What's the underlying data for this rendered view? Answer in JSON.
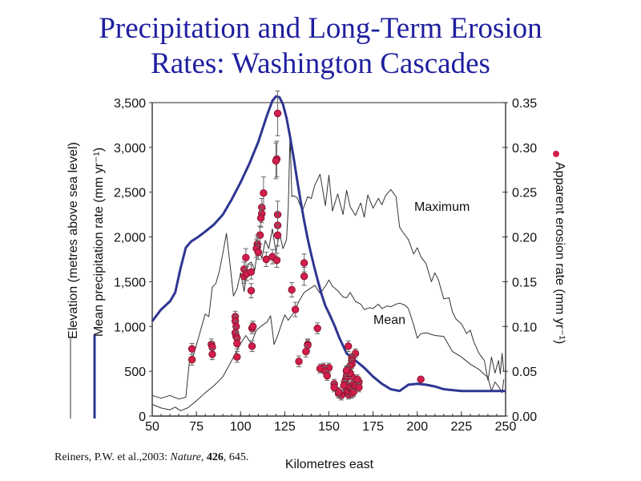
{
  "title_lines": [
    "Precipitation and Long-Term Erosion",
    "Rates: Washington Cascades"
  ],
  "citation": {
    "prefix": "Reiners, P.W. et al.,2003: ",
    "journal": "Nature",
    "sep1": ", ",
    "volume": "426",
    "sep2": ", 645."
  },
  "colors": {
    "title": "#1f1fa0",
    "precipitation": "#2e3592",
    "elevation": "#333333",
    "erosion_fill": "#d21e4b",
    "erosion_stroke": "#7a0f28",
    "error_bar": "#666666"
  },
  "chart_data": {
    "type": "line",
    "title": "Precipitation and Long-Term Erosion Rates: Washington Cascades",
    "xlabel": "Kilometres east",
    "ylabel_left_lines": [
      "Elevation (metres above sea level)",
      "Mean precipitation rate (mm yr⁻¹)"
    ],
    "ylabel_right": "Apparent erosion rate (mm yr⁻¹)",
    "xlim": [
      50,
      250
    ],
    "ylim_left": [
      0,
      3500
    ],
    "ylim_right": [
      0,
      0.35
    ],
    "x_ticks": [
      "50",
      "75",
      "100",
      "125",
      "150",
      "175",
      "200",
      "225",
      "250"
    ],
    "x_tick_values": [
      50,
      75,
      100,
      125,
      150,
      175,
      200,
      225,
      250
    ],
    "y_left_ticks": [
      "0",
      "500",
      "1,000",
      "1,500",
      "2,000",
      "2,500",
      "3,000",
      "3,500"
    ],
    "y_left_tick_values": [
      0,
      500,
      1000,
      1500,
      2000,
      2500,
      3000,
      3500
    ],
    "y_right_ticks": [
      "0.00",
      "0.05",
      "0.10",
      "0.15",
      "0.20",
      "0.25",
      "0.30",
      "0.35"
    ],
    "y_right_tick_values": [
      0,
      0.05,
      0.1,
      0.15,
      0.2,
      0.25,
      0.3,
      0.35
    ],
    "legend": [
      {
        "label": "Elevation (metres above sea level)",
        "style": "thin grey line"
      },
      {
        "label": "Mean precipitation rate (mm yr⁻¹)",
        "style": "thick blue line"
      },
      {
        "label": "Apparent erosion rate (mm yr⁻¹)",
        "style": "red dot"
      }
    ],
    "annotations": [
      "Maximum",
      "Mean"
    ],
    "series": [
      {
        "name": "Mean precipitation rate",
        "axis": "left",
        "x": [
          50,
          55,
          60,
          63,
          66,
          69,
          72,
          76,
          80,
          85,
          90,
          95,
          100,
          105,
          110,
          115,
          118,
          120,
          122,
          124,
          126,
          128,
          130,
          132,
          134,
          136,
          138,
          140,
          142,
          144,
          146,
          148,
          150,
          153,
          156,
          160,
          165,
          170,
          175,
          180,
          185,
          190,
          195,
          200,
          205,
          210,
          215,
          220,
          225,
          230,
          235,
          240,
          245,
          250
        ],
        "values": [
          1060,
          1190,
          1280,
          1380,
          1650,
          1880,
          1950,
          2000,
          2060,
          2140,
          2250,
          2420,
          2610,
          2820,
          3060,
          3360,
          3520,
          3570,
          3560,
          3480,
          3330,
          3120,
          2890,
          2640,
          2400,
          2180,
          1980,
          1800,
          1640,
          1490,
          1350,
          1230,
          1150,
          1020,
          870,
          700,
          620,
          540,
          440,
          360,
          300,
          280,
          350,
          360,
          350,
          330,
          300,
          290,
          280,
          280,
          280,
          280,
          280,
          280
        ]
      },
      {
        "name": "Maximum elevation",
        "axis": "left",
        "x": [
          50,
          55,
          60,
          65,
          69,
          71,
          73,
          76,
          78,
          80,
          82,
          84,
          86,
          88,
          90,
          92,
          94,
          96,
          98,
          100,
          102,
          104,
          106,
          108,
          110,
          112,
          114,
          116,
          118,
          120,
          122,
          124,
          126,
          127,
          128,
          129,
          130,
          132,
          135,
          138,
          140,
          142,
          145,
          148,
          150,
          152,
          155,
          158,
          160,
          162,
          165,
          168,
          170,
          172,
          175,
          178,
          180,
          182,
          185,
          188,
          190,
          192,
          195,
          198,
          200,
          202,
          205,
          208,
          210,
          212,
          215,
          218,
          220,
          222,
          225,
          228,
          230,
          232,
          235,
          238,
          240,
          241,
          242,
          244,
          246,
          247,
          248,
          249
        ],
        "values": [
          230,
          200,
          230,
          190,
          210,
          600,
          660,
          860,
          1000,
          1140,
          1110,
          1440,
          1480,
          1620,
          1820,
          2040,
          1700,
          1340,
          1420,
          1600,
          1390,
          1690,
          1720,
          1630,
          1900,
          1760,
          1960,
          1870,
          2090,
          1830,
          2050,
          1870,
          1970,
          2330,
          3160,
          2450,
          2460,
          2440,
          2290,
          2450,
          2430,
          2580,
          2700,
          2350,
          2690,
          2290,
          2480,
          2250,
          2520,
          2340,
          2240,
          2380,
          2220,
          2470,
          2320,
          2430,
          2360,
          2460,
          2530,
          2450,
          2110,
          2050,
          1970,
          1810,
          1880,
          1780,
          1700,
          1500,
          1600,
          1520,
          1310,
          1320,
          1160,
          1080,
          1030,
          920,
          960,
          830,
          700,
          620,
          400,
          520,
          660,
          480,
          620,
          470,
          700,
          500
        ]
      },
      {
        "name": "Mean elevation",
        "axis": "left",
        "x": [
          50,
          55,
          60,
          63,
          66,
          70,
          75,
          80,
          85,
          90,
          95,
          100,
          103,
          106,
          109,
          112,
          115,
          117,
          119,
          121,
          123,
          125,
          127,
          130,
          133,
          136,
          139,
          142,
          145,
          148,
          150,
          152,
          155,
          158,
          160,
          162,
          165,
          168,
          170,
          173,
          175,
          178,
          180,
          183,
          185,
          188,
          190,
          193,
          195,
          198,
          200,
          202,
          205,
          210,
          215,
          220,
          225,
          230,
          235,
          240,
          242,
          244,
          246,
          248,
          249
        ],
        "values": [
          130,
          90,
          70,
          100,
          60,
          90,
          170,
          260,
          340,
          440,
          620,
          810,
          900,
          810,
          960,
          1010,
          1050,
          1120,
          800,
          900,
          1020,
          1130,
          1070,
          1150,
          1280,
          1380,
          1420,
          1460,
          1370,
          1450,
          1520,
          1450,
          1400,
          1330,
          1320,
          1380,
          1280,
          1250,
          1190,
          1210,
          1200,
          1250,
          1200,
          1230,
          1220,
          1250,
          1260,
          1240,
          1200,
          1020,
          870,
          920,
          930,
          900,
          890,
          720,
          660,
          580,
          520,
          430,
          280,
          380,
          330,
          260,
          410
        ]
      },
      {
        "name": "Apparent erosion rate",
        "axis": "right",
        "type": "scatter",
        "x": [
          121,
          120.5,
          120,
          113,
          112,
          112,
          111.5,
          111,
          111,
          121,
          121,
          121,
          109.5,
          109.5,
          109,
          110,
          114.5,
          118,
          120.5,
          103,
          102,
          102,
          103.5,
          106,
          106,
          136,
          136,
          131,
          129,
          72.5,
          72.5,
          83.5,
          84,
          84,
          97,
          97,
          97.5,
          97,
          97.5,
          98,
          98,
          98,
          106.5,
          107,
          106.5,
          138,
          138,
          143.5,
          137,
          133,
          161,
          165,
          163,
          163,
          163,
          162,
          161,
          160,
          160,
          159.5,
          159,
          160,
          160,
          160,
          158.5,
          161,
          161,
          162,
          163,
          163,
          164,
          164,
          165,
          167,
          167,
          166,
          163,
          162,
          160,
          157,
          155.5,
          155.5,
          153,
          153,
          150,
          147,
          145,
          148,
          149,
          202
        ],
        "values": [
          0.338,
          0.287,
          0.285,
          0.249,
          0.233,
          0.226,
          0.221,
          0.202,
          0.202,
          0.225,
          0.213,
          0.202,
          0.192,
          0.189,
          0.187,
          0.183,
          0.175,
          0.178,
          0.174,
          0.177,
          0.164,
          0.156,
          0.159,
          0.161,
          0.14,
          0.171,
          0.156,
          0.119,
          0.141,
          0.075,
          0.063,
          0.08,
          0.077,
          0.069,
          0.111,
          0.106,
          0.1,
          0.093,
          0.089,
          0.087,
          0.081,
          0.066,
          0.098,
          0.1,
          0.078,
          0.08,
          0.079,
          0.098,
          0.072,
          0.061,
          0.078,
          0.07,
          0.065,
          0.062,
          0.058,
          0.056,
          0.052,
          0.05,
          0.045,
          0.041,
          0.038,
          0.035,
          0.031,
          0.028,
          0.034,
          0.024,
          0.028,
          0.032,
          0.029,
          0.025,
          0.027,
          0.036,
          0.034,
          0.038,
          0.032,
          0.041,
          0.044,
          0.048,
          0.051,
          0.023,
          0.025,
          0.027,
          0.036,
          0.032,
          0.054,
          0.054,
          0.053,
          0.05,
          0.045,
          0.041
        ],
        "errors": [
          0.025,
          0.02,
          0.02,
          0.018,
          0.01,
          0.01,
          0.01,
          0.01,
          0.01,
          0.015,
          0.015,
          0.012,
          0.01,
          0.01,
          0.01,
          0.008,
          0.008,
          0.008,
          0.008,
          0.01,
          0.008,
          0.008,
          0.008,
          0.008,
          0.008,
          0.01,
          0.01,
          0.008,
          0.008,
          0.006,
          0.006,
          0.006,
          0.006,
          0.006,
          0.006,
          0.006,
          0.006,
          0.006,
          0.006,
          0.006,
          0.006,
          0.006,
          0.006,
          0.006,
          0.006,
          0.006,
          0.006,
          0.006,
          0.006,
          0.006,
          0.006,
          0.005,
          0.005,
          0.005,
          0.005,
          0.005,
          0.005,
          0.005,
          0.005,
          0.005,
          0.005,
          0.005,
          0.005,
          0.005,
          0.005,
          0.005,
          0.005,
          0.005,
          0.005,
          0.005,
          0.005,
          0.005,
          0.005,
          0.005,
          0.005,
          0.005,
          0.005,
          0.005,
          0.005,
          0.005,
          0.005,
          0.005,
          0.005,
          0.005,
          0.005,
          0.005,
          0.005,
          0.005,
          0.005,
          0
        ]
      }
    ]
  }
}
